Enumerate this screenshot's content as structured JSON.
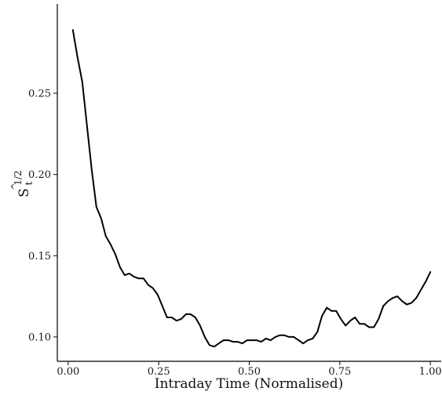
{
  "chart_data": {
    "type": "line",
    "title": "",
    "xlabel": "Intraday Time (Normalised)",
    "ylabel": {
      "hat": "^",
      "base": "S",
      "exponent": "1/2",
      "subscript": "t"
    },
    "xlim": [
      -0.03,
      1.03
    ],
    "ylim": [
      0.085,
      0.305
    ],
    "xticks": [
      0.0,
      0.25,
      0.5,
      0.75,
      1.0
    ],
    "xtick_labels": [
      "0.00",
      "0.25",
      "0.50",
      "0.75",
      "1.00"
    ],
    "yticks": [
      0.1,
      0.15,
      0.2,
      0.25
    ],
    "ytick_labels": [
      "0.10",
      "0.15",
      "0.20",
      "0.25"
    ],
    "grid": false,
    "line_color": "#000000",
    "series": [
      {
        "x": [
          0.013,
          0.026,
          0.039,
          0.052,
          0.065,
          0.078,
          0.091,
          0.104,
          0.117,
          0.13,
          0.143,
          0.156,
          0.169,
          0.182,
          0.195,
          0.208,
          0.221,
          0.234,
          0.247,
          0.26,
          0.273,
          0.286,
          0.299,
          0.312,
          0.325,
          0.338,
          0.351,
          0.364,
          0.377,
          0.39,
          0.403,
          0.416,
          0.429,
          0.442,
          0.455,
          0.468,
          0.481,
          0.494,
          0.507,
          0.52,
          0.533,
          0.546,
          0.559,
          0.572,
          0.584,
          0.597,
          0.61,
          0.623,
          0.636,
          0.649,
          0.662,
          0.675,
          0.688,
          0.701,
          0.714,
          0.727,
          0.74,
          0.753,
          0.766,
          0.779,
          0.792,
          0.805,
          0.818,
          0.831,
          0.844,
          0.857,
          0.87,
          0.883,
          0.896,
          0.909,
          0.922,
          0.935,
          0.948,
          0.961,
          0.974,
          0.987,
          1.0
        ],
        "y": [
          0.289,
          0.272,
          0.257,
          0.23,
          0.203,
          0.18,
          0.173,
          0.162,
          0.157,
          0.151,
          0.143,
          0.138,
          0.139,
          0.137,
          0.136,
          0.136,
          0.132,
          0.13,
          0.126,
          0.119,
          0.112,
          0.112,
          0.11,
          0.111,
          0.114,
          0.114,
          0.112,
          0.107,
          0.1,
          0.095,
          0.094,
          0.096,
          0.098,
          0.098,
          0.097,
          0.097,
          0.096,
          0.098,
          0.098,
          0.098,
          0.097,
          0.099,
          0.098,
          0.1,
          0.101,
          0.101,
          0.1,
          0.1,
          0.098,
          0.096,
          0.098,
          0.099,
          0.103,
          0.113,
          0.118,
          0.116,
          0.116,
          0.111,
          0.107,
          0.11,
          0.112,
          0.108,
          0.108,
          0.106,
          0.106,
          0.111,
          0.119,
          0.122,
          0.124,
          0.125,
          0.122,
          0.12,
          0.121,
          0.124,
          0.129,
          0.134,
          0.14
        ]
      }
    ]
  }
}
